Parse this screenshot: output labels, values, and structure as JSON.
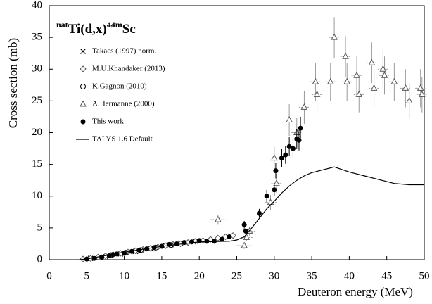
{
  "chart_data": {
    "type": "scatter",
    "title": [
      "nat",
      "Ti(d,x)",
      "44m",
      "Sc"
    ],
    "xlabel": "Deuteron energy (MeV)",
    "ylabel": "Cross section (mb)",
    "xlim": [
      0,
      50
    ],
    "ylim": [
      0,
      40
    ],
    "xticks": [
      0,
      5,
      10,
      15,
      20,
      25,
      30,
      35,
      40,
      45,
      50
    ],
    "yticks": [
      0,
      5,
      10,
      15,
      20,
      25,
      30,
      35,
      40
    ],
    "legend": "upper-left",
    "series": [
      {
        "name": "Takacs (1997) norm.",
        "marker": "x",
        "color": "#000000",
        "x": [
          5.5,
          7.5,
          9.5,
          11.5,
          13.5,
          15.5,
          17.5,
          19.5
        ],
        "values": [
          0.2,
          0.5,
          0.9,
          1.3,
          1.8,
          2.2,
          2.6,
          2.9
        ]
      },
      {
        "name": "M.U.Khandaker (2013)",
        "marker": "diamond",
        "color": "#555555",
        "x": [
          4.5,
          5.5,
          6.5,
          7.5,
          8.5,
          9.5,
          10.5,
          11.5,
          12.5,
          13.5,
          14.5,
          15.5,
          16.5,
          17.5,
          18.5,
          19.5,
          20.5,
          21.5,
          22.5,
          23.5,
          24.5
        ],
        "values": [
          0.1,
          0.2,
          0.4,
          0.6,
          0.8,
          1.0,
          1.2,
          1.4,
          1.6,
          1.8,
          2.0,
          2.2,
          2.4,
          2.5,
          2.7,
          2.9,
          3.0,
          3.2,
          3.4,
          3.6,
          3.8
        ]
      },
      {
        "name": "K.Gagnon (2010)",
        "marker": "circle",
        "color": "#000000",
        "x": [
          8.2,
          10.2,
          12.2,
          14.2,
          16.2
        ],
        "values": [
          0.7,
          1.1,
          1.5,
          1.9,
          2.3
        ]
      },
      {
        "name": "A.Hermanne (2000)",
        "marker": "triangle",
        "color": "#555555",
        "x": [
          22.5,
          26,
          26.3,
          26.7,
          29.5,
          30,
          30.3,
          32,
          33,
          34,
          35.5,
          35.7,
          37.5,
          38,
          39.5,
          39.7,
          41,
          41.3,
          43,
          43.3,
          44.5,
          44.7,
          46,
          47.5,
          48,
          49.5,
          49.7
        ],
        "values": [
          6.3,
          2.2,
          3.5,
          4.5,
          9,
          16,
          12,
          22,
          20,
          24,
          28,
          26,
          28,
          35,
          32,
          28,
          29,
          26,
          31,
          27,
          30,
          29,
          28,
          27,
          25,
          27,
          26
        ],
        "errors": [
          0.8,
          0.5,
          0.6,
          0.7,
          1.2,
          1.8,
          1.5,
          2.5,
          2.3,
          2.6,
          3,
          2.8,
          3,
          3.2,
          3.2,
          3,
          3,
          2.8,
          3.2,
          3,
          3,
          3,
          3,
          3,
          2.8,
          3,
          2.8
        ],
        "xerr": [
          1,
          1,
          0.8,
          0.8,
          0.8,
          0.7,
          0.7,
          0.7,
          0.7,
          0.7,
          0.7,
          0.7,
          0.7,
          0.7,
          0.7,
          0.7,
          0.7,
          0.7,
          0.7,
          0.7,
          0.7,
          0.7,
          0.7,
          0.7,
          0.7,
          0.7,
          0.7
        ]
      },
      {
        "name": "This work",
        "marker": "dot",
        "color": "#000000",
        "x": [
          5,
          6,
          7,
          8,
          8.5,
          9,
          10,
          11,
          12,
          13,
          14,
          15,
          16,
          17,
          18,
          19,
          20,
          21,
          22,
          23,
          24,
          26,
          26.2,
          28,
          29,
          30,
          30.2,
          31,
          31.5,
          32,
          32.5,
          33,
          33.3,
          33.5
        ],
        "values": [
          0.1,
          0.2,
          0.4,
          0.6,
          0.8,
          0.9,
          1.0,
          1.3,
          1.5,
          1.7,
          1.9,
          2.1,
          2.4,
          2.5,
          2.7,
          2.8,
          3.0,
          2.9,
          2.9,
          3.2,
          3.6,
          5.5,
          4.5,
          7.3,
          10,
          11,
          14,
          16,
          16.5,
          17.8,
          17.5,
          19,
          18.8,
          20.7
        ],
        "errors": [
          0.1,
          0.1,
          0.1,
          0.15,
          0.15,
          0.15,
          0.15,
          0.2,
          0.2,
          0.2,
          0.2,
          0.2,
          0.2,
          0.2,
          0.2,
          0.25,
          0.25,
          0.25,
          0.25,
          0.3,
          0.3,
          0.6,
          0.5,
          0.7,
          1,
          1,
          1.2,
          1.4,
          1.4,
          1.5,
          1.5,
          1.6,
          1.6,
          1.8
        ]
      },
      {
        "name": "TALYS 1.6 Default",
        "marker": "line",
        "color": "#000000",
        "x": [
          4,
          5,
          10,
          15,
          20,
          24,
          25,
          26,
          27,
          28,
          29,
          30,
          31,
          32,
          33,
          34,
          35,
          36,
          37,
          38,
          39,
          40,
          42,
          44,
          46,
          48,
          50
        ],
        "values": [
          0,
          0.1,
          1.2,
          2.1,
          2.8,
          2.9,
          3.1,
          3.6,
          5.0,
          6.5,
          8.0,
          9.2,
          10.5,
          11.6,
          12.5,
          13.2,
          13.7,
          14.0,
          14.3,
          14.6,
          14.2,
          13.8,
          13.2,
          12.6,
          12.0,
          11.8,
          11.8
        ]
      }
    ]
  }
}
